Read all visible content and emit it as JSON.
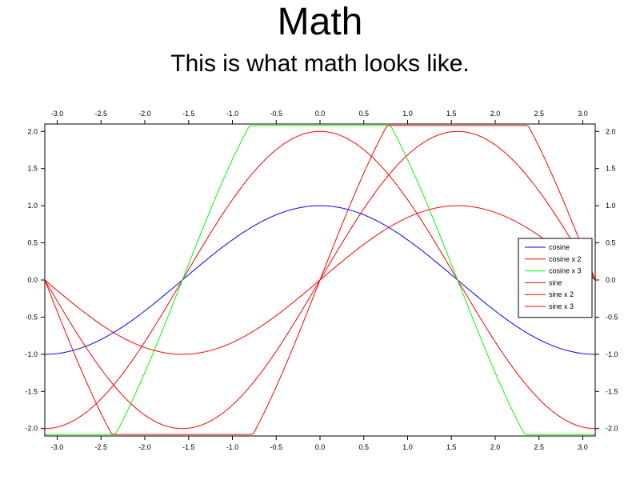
{
  "chart_data": {
    "type": "line",
    "title": "Math",
    "subtitle": "This is what math looks like.",
    "xlim": [
      -3.1416,
      3.1416
    ],
    "ylim": [
      -2.1,
      2.1
    ],
    "clip": [
      -2.08,
      2.08
    ],
    "x_ticks": [
      -3.0,
      -2.5,
      -2.0,
      -1.5,
      -1.0,
      -0.5,
      0.0,
      0.5,
      1.0,
      1.5,
      2.0,
      2.5,
      3.0
    ],
    "x_tick_labels": [
      "-3.0",
      "-2.5",
      "-2.0",
      "-1.5",
      "-1.0",
      "-0.5",
      "0.0",
      "0.5",
      "1.0",
      "1.5",
      "2.0",
      "2.5",
      "3.0"
    ],
    "y_ticks": [
      2.0,
      1.5,
      1.0,
      0.5,
      0.0,
      -0.5,
      -1.0,
      -1.5,
      -2.0
    ],
    "y_tick_labels": [
      "2.0",
      "1.5",
      "1.0",
      "0.5",
      "0.0",
      "-0.5",
      "-1.0",
      "-1.5",
      "-2.0"
    ],
    "legend_position": "right",
    "grid": false,
    "series": [
      {
        "name": "cosine",
        "func": "cos",
        "multiplier": 1,
        "color": "#0000ff"
      },
      {
        "name": "cosine x 2",
        "func": "cos",
        "multiplier": 2,
        "color": "#ff0000"
      },
      {
        "name": "cosine x 3",
        "func": "cos",
        "multiplier": 3,
        "color": "#00ff00"
      },
      {
        "name": "sine",
        "func": "sin",
        "multiplier": 1,
        "color": "#ff0000"
      },
      {
        "name": "sine x 2",
        "func": "sin",
        "multiplier": 2,
        "color": "#ff0000"
      },
      {
        "name": "sine x 3",
        "func": "sin",
        "multiplier": 3,
        "color": "#ff0000"
      }
    ]
  }
}
